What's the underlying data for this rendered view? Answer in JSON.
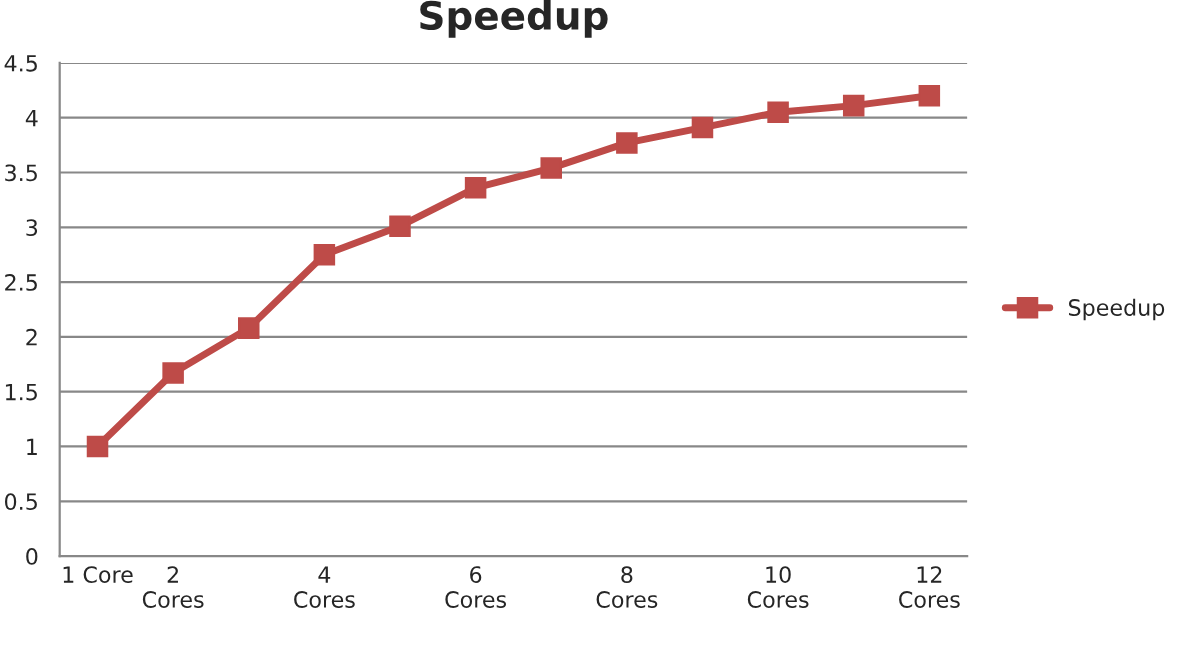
{
  "chart_data": {
    "type": "line",
    "title": "Speedup",
    "categories": [
      "1 Core",
      "2\nCores",
      null,
      "4\nCores",
      null,
      "6\nCores",
      null,
      "8\nCores",
      null,
      "10\nCores",
      null,
      "12\nCores"
    ],
    "series": [
      {
        "name": "Speedup",
        "color": "#be4b48",
        "values": [
          1,
          1.67,
          2.08,
          2.75,
          3.01,
          3.36,
          3.54,
          3.77,
          3.91,
          4.05,
          4.11,
          4.2
        ]
      }
    ],
    "ylim": [
      0,
      4.5
    ],
    "yticks": [
      0,
      0.5,
      1,
      1.5,
      2,
      2.5,
      3,
      3.5,
      4,
      4.5
    ],
    "grid": "y",
    "legend": "right",
    "marker": "square",
    "line_style": "solid"
  }
}
